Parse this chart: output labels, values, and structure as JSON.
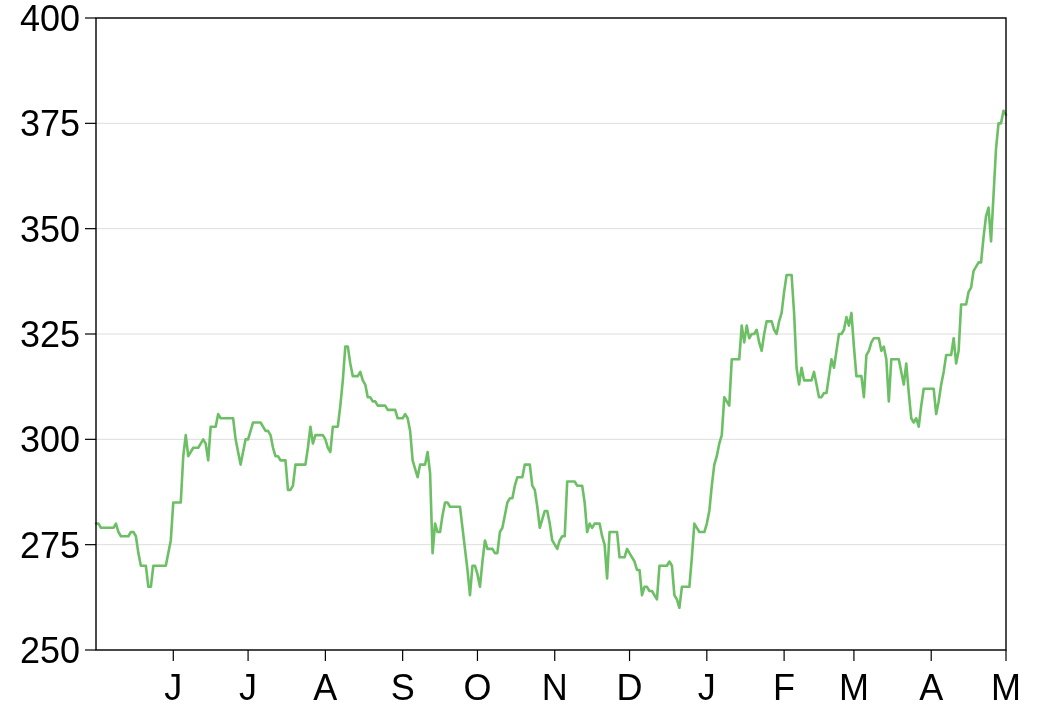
{
  "chart_data": {
    "type": "line",
    "color": "#6cbf64",
    "line_style": "solid",
    "grid": "y",
    "ylim": [
      250,
      400
    ],
    "yticks": [
      250,
      275,
      300,
      325,
      350,
      375,
      400
    ],
    "categories": [
      null,
      null,
      null,
      null,
      null,
      null,
      null,
      null,
      null,
      null,
      null,
      null,
      null,
      null,
      null,
      null,
      null,
      null,
      null,
      null,
      null,
      null,
      null,
      null,
      null,
      null,
      null,
      null,
      null,
      null,
      null,
      "J",
      null,
      null,
      null,
      null,
      null,
      null,
      null,
      null,
      null,
      null,
      null,
      null,
      null,
      null,
      null,
      null,
      null,
      null,
      null,
      null,
      null,
      null,
      null,
      null,
      null,
      null,
      null,
      null,
      null,
      "J",
      null,
      null,
      null,
      null,
      null,
      null,
      null,
      null,
      null,
      null,
      null,
      null,
      null,
      null,
      null,
      null,
      null,
      null,
      null,
      null,
      null,
      null,
      null,
      null,
      null,
      null,
      null,
      null,
      null,
      null,
      "A",
      null,
      null,
      null,
      null,
      null,
      null,
      null,
      null,
      null,
      null,
      null,
      null,
      null,
      null,
      null,
      null,
      null,
      null,
      null,
      null,
      null,
      null,
      null,
      null,
      null,
      null,
      null,
      null,
      null,
      null,
      "S",
      null,
      null,
      null,
      null,
      null,
      null,
      null,
      null,
      null,
      null,
      null,
      null,
      null,
      null,
      null,
      null,
      null,
      null,
      null,
      null,
      null,
      null,
      null,
      null,
      null,
      null,
      null,
      null,
      null,
      "O",
      null,
      null,
      null,
      null,
      null,
      null,
      null,
      null,
      null,
      null,
      null,
      null,
      null,
      null,
      null,
      null,
      null,
      null,
      null,
      null,
      null,
      null,
      null,
      null,
      null,
      null,
      null,
      null,
      null,
      null,
      "N",
      null,
      null,
      null,
      null,
      null,
      null,
      null,
      null,
      null,
      null,
      null,
      null,
      null,
      null,
      null,
      null,
      null,
      null,
      null,
      null,
      null,
      null,
      null,
      null,
      null,
      null,
      null,
      null,
      null,
      "D",
      null,
      null,
      null,
      null,
      null,
      null,
      null,
      null,
      null,
      null,
      null,
      null,
      null,
      null,
      null,
      null,
      null,
      null,
      null,
      null,
      null,
      null,
      null,
      null,
      null,
      null,
      null,
      null,
      null,
      null,
      "J",
      null,
      null,
      null,
      null,
      null,
      null,
      null,
      null,
      null,
      null,
      null,
      null,
      null,
      null,
      null,
      null,
      null,
      null,
      null,
      null,
      null,
      null,
      null,
      null,
      null,
      null,
      null,
      null,
      null,
      null,
      "F",
      null,
      null,
      null,
      null,
      null,
      null,
      null,
      null,
      null,
      null,
      null,
      null,
      null,
      null,
      null,
      null,
      null,
      null,
      null,
      null,
      null,
      null,
      null,
      null,
      null,
      null,
      null,
      "M",
      null,
      null,
      null,
      null,
      null,
      null,
      null,
      null,
      null,
      null,
      null,
      null,
      null,
      null,
      null,
      null,
      null,
      null,
      null,
      null,
      null,
      null,
      null,
      null,
      null,
      null,
      null,
      null,
      null,
      null,
      "A",
      null,
      null,
      null,
      null,
      null,
      null,
      null,
      null,
      null,
      null,
      null,
      null,
      null,
      null,
      null,
      null,
      null,
      null,
      null,
      null,
      null,
      null,
      null,
      null,
      null,
      null,
      null,
      null,
      null,
      "M"
    ],
    "values": [
      280,
      280,
      279,
      279,
      279,
      279,
      279,
      279,
      280,
      278,
      277,
      277,
      277,
      277,
      278,
      278,
      277,
      273,
      270,
      270,
      270,
      265,
      265,
      270,
      270,
      270,
      270,
      270,
      270,
      273,
      276,
      285,
      285,
      285,
      285,
      296,
      301,
      296,
      297,
      298,
      298,
      298,
      299,
      300,
      299,
      295,
      303,
      303,
      303,
      306,
      305,
      305,
      305,
      305,
      305,
      305,
      300,
      297,
      294,
      297,
      300,
      300,
      302,
      304,
      304,
      304,
      304,
      303,
      302,
      302,
      301,
      298,
      296,
      296,
      295,
      295,
      295,
      288,
      288,
      289,
      294,
      294,
      294,
      294,
      294,
      298,
      303,
      299,
      301,
      301,
      301,
      301,
      300,
      298,
      297,
      303,
      303,
      303,
      308,
      314,
      322,
      322,
      318,
      315,
      315,
      315,
      316,
      314,
      313,
      310,
      310,
      309,
      309,
      308,
      308,
      308,
      308,
      307,
      307,
      307,
      307,
      305,
      305,
      305,
      306,
      305,
      302,
      295,
      293,
      291,
      294,
      294,
      294,
      297,
      292,
      273,
      280,
      278,
      278,
      282,
      285,
      285,
      284,
      284,
      284,
      284,
      284,
      279,
      274,
      269,
      263,
      270,
      270,
      268,
      265,
      271,
      276,
      274,
      274,
      274,
      273,
      273,
      278,
      279,
      282,
      285,
      286,
      286,
      289,
      291,
      291,
      291,
      294,
      294,
      294,
      289,
      288,
      284,
      279,
      281,
      283,
      283,
      280,
      276,
      275,
      274,
      276,
      277,
      277,
      290,
      290,
      290,
      290,
      289,
      289,
      289,
      285,
      278,
      280,
      279,
      280,
      280,
      280,
      277,
      275,
      267,
      278,
      278,
      278,
      278,
      272,
      272,
      272,
      274,
      273,
      272,
      271,
      269,
      269,
      263,
      265,
      265,
      264,
      264,
      263,
      262,
      270,
      270,
      270,
      270,
      271,
      270,
      263,
      262,
      260,
      265,
      265,
      265,
      265,
      272,
      280,
      279,
      278,
      278,
      278,
      280,
      283,
      289,
      294,
      296,
      299,
      301,
      310,
      309,
      308,
      319,
      319,
      319,
      319,
      327,
      323,
      327,
      324,
      325,
      325,
      326,
      323,
      321,
      325,
      328,
      328,
      328,
      326,
      325,
      328,
      330,
      335,
      339,
      339,
      339,
      330,
      317,
      313,
      317,
      314,
      314,
      314,
      314,
      316,
      313,
      310,
      310,
      311,
      311,
      315,
      319,
      317,
      321,
      325,
      325,
      326,
      329,
      327,
      330,
      322,
      315,
      315,
      315,
      310,
      320,
      321,
      323,
      324,
      324,
      324,
      321,
      322,
      319,
      309,
      319,
      319,
      319,
      319,
      316,
      313,
      318,
      311,
      305,
      304,
      305,
      303,
      308,
      312,
      312,
      312,
      312,
      312,
      306,
      309,
      313,
      316,
      320,
      320,
      320,
      324,
      318,
      321,
      332,
      332,
      332,
      335,
      336,
      340,
      341,
      342,
      342,
      348,
      353,
      355,
      347,
      358,
      369,
      375,
      375,
      378,
      377
    ]
  }
}
